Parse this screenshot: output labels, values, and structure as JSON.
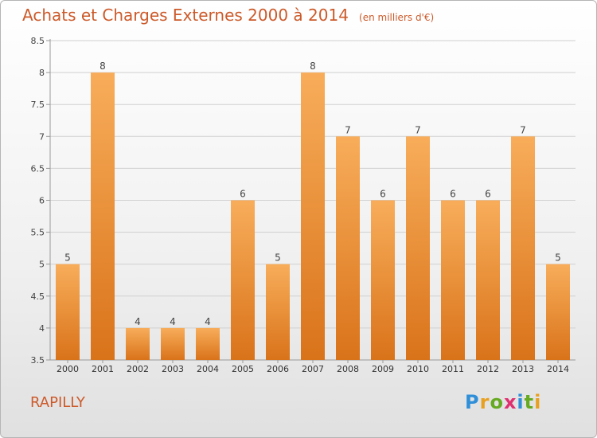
{
  "title": "Achats et Charges Externes 2000 à 2014",
  "unit": "(en milliers d'€)",
  "town": "RAPILLY",
  "logo": {
    "letters": [
      "P",
      "r",
      "o",
      "x",
      "i",
      "t",
      "i"
    ],
    "colors": [
      "#2f8fd8",
      "#e8a020",
      "#66aa22",
      "#e03070",
      "#2f8fd8",
      "#66aa22",
      "#e8a020"
    ]
  },
  "chart_data": {
    "type": "bar",
    "categories": [
      "2000",
      "2001",
      "2002",
      "2003",
      "2004",
      "2005",
      "2006",
      "2007",
      "2008",
      "2009",
      "2010",
      "2011",
      "2012",
      "2013",
      "2014"
    ],
    "values": [
      5,
      8,
      4,
      4,
      4,
      6,
      5,
      8,
      7,
      6,
      7,
      6,
      6,
      7,
      5
    ],
    "value_labels": [
      "5",
      "8",
      "4",
      "4",
      "4",
      "6",
      "5",
      "8",
      "7",
      "6",
      "7",
      "6",
      "6",
      "7",
      "5"
    ],
    "ylim": [
      3.5,
      8.5
    ],
    "yticks": [
      3.5,
      4,
      4.5,
      5,
      5.5,
      6,
      6.5,
      7,
      7.5,
      8,
      8.5
    ],
    "ytick_labels": [
      "3.5",
      "4",
      "4.5",
      "5",
      "5.5",
      "6",
      "6.5",
      "7",
      "7.5",
      "8",
      "8.5"
    ],
    "grid": true,
    "bar_color": "#f0922e",
    "bar_color_light": "#f8ad5a",
    "bar_color_dark": "#d9731a"
  }
}
